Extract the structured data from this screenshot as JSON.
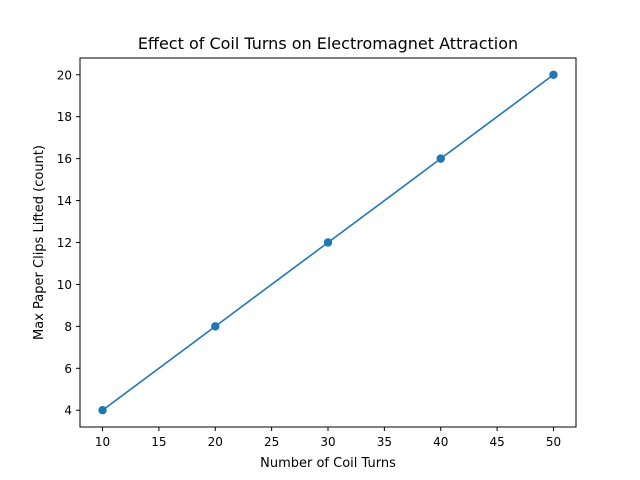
{
  "chart_data": {
    "type": "line",
    "title": "Effect of Coil Turns on Electromagnet Attraction",
    "xlabel": "Number of Coil Turns",
    "ylabel": "Max Paper Clips Lifted (count)",
    "x": [
      10,
      20,
      30,
      40,
      50
    ],
    "series": [
      {
        "values": [
          4,
          8,
          12,
          16,
          20
        ],
        "color": "#1f77b4",
        "marker": "circle"
      }
    ],
    "xlim": [
      8,
      52
    ],
    "ylim": [
      3.2,
      20.8
    ],
    "xticks": [
      10,
      15,
      20,
      25,
      30,
      35,
      40,
      45,
      50
    ],
    "yticks": [
      4,
      6,
      8,
      10,
      12,
      14,
      16,
      18,
      20
    ],
    "grid": false,
    "legend": "none"
  }
}
